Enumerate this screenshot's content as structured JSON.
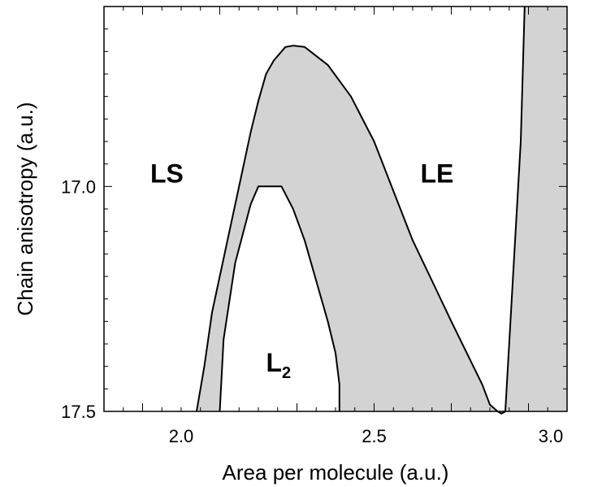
{
  "chart_data": {
    "type": "area",
    "xlabel": "Area per molecule (a.u.)",
    "ylabel": "Chain anisotropy (a.u.)",
    "xlim": [
      1.8,
      3.0
    ],
    "ylim": [
      17.5,
      16.6
    ],
    "y_axis_inverted": true,
    "grid": false,
    "fill_color": "#d3d3d3",
    "line_color": "#000000",
    "x_ticks": [
      "2.0",
      "2.5",
      "3.0"
    ],
    "y_ticks": [
      "17.0",
      "17.5"
    ],
    "regions": [
      {
        "label": "LS",
        "x": 1.92,
        "y": 16.97
      },
      {
        "label": "LE",
        "x": 2.62,
        "y": 16.97
      },
      {
        "label": "L",
        "subscript": "2",
        "x": 2.22,
        "y": 17.39
      }
    ],
    "series": [
      {
        "boundary": "outer-left",
        "x": [
          2.04,
          2.06,
          2.08,
          2.1,
          2.12,
          2.14,
          2.16,
          2.18,
          2.2,
          2.22,
          2.24,
          2.27,
          2.29
        ],
        "y": [
          17.5,
          17.4,
          17.28,
          17.2,
          17.12,
          17.04,
          16.96,
          16.88,
          16.81,
          16.75,
          16.72,
          16.69,
          16.687
        ]
      },
      {
        "boundary": "outer-right",
        "x": [
          2.29,
          2.32,
          2.38,
          2.44,
          2.5,
          2.55,
          2.6,
          2.65,
          2.7,
          2.74,
          2.78,
          2.8,
          2.82,
          2.83,
          2.84,
          2.86,
          2.88,
          2.89
        ],
        "y": [
          16.687,
          16.69,
          16.73,
          16.8,
          16.9,
          17.01,
          17.12,
          17.21,
          17.3,
          17.37,
          17.44,
          17.485,
          17.5,
          17.505,
          17.5,
          17.2,
          16.9,
          16.6
        ]
      },
      {
        "boundary": "inner-left",
        "x": [
          2.1,
          2.11,
          2.14,
          2.18,
          2.2,
          2.26,
          2.29
        ],
        "y": [
          17.5,
          17.34,
          17.17,
          17.04,
          17.0,
          17.0,
          17.05
        ]
      },
      {
        "boundary": "inner-right",
        "x": [
          2.29,
          2.32,
          2.34,
          2.36,
          2.38,
          2.4,
          2.41,
          2.41,
          2.41
        ],
        "y": [
          17.05,
          17.12,
          17.18,
          17.24,
          17.3,
          17.37,
          17.44,
          17.47,
          17.5
        ]
      }
    ]
  }
}
